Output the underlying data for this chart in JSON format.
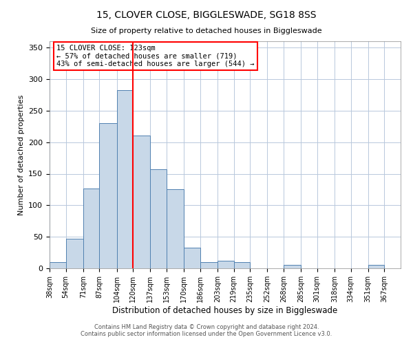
{
  "title": "15, CLOVER CLOSE, BIGGLESWADE, SG18 8SS",
  "subtitle": "Size of property relative to detached houses in Biggleswade",
  "xlabel": "Distribution of detached houses by size in Biggleswade",
  "ylabel": "Number of detached properties",
  "bin_labels": [
    "38sqm",
    "54sqm",
    "71sqm",
    "87sqm",
    "104sqm",
    "120sqm",
    "137sqm",
    "153sqm",
    "170sqm",
    "186sqm",
    "203sqm",
    "219sqm",
    "235sqm",
    "252sqm",
    "268sqm",
    "285sqm",
    "301sqm",
    "318sqm",
    "334sqm",
    "351sqm",
    "367sqm"
  ],
  "bar_values": [
    10,
    47,
    127,
    230,
    283,
    210,
    157,
    126,
    33,
    10,
    12,
    10,
    0,
    0,
    6,
    0,
    0,
    0,
    0,
    6,
    0
  ],
  "bar_color": "#c8d8e8",
  "bar_edge_color": "#5080b0",
  "vline_color": "red",
  "ylim": [
    0,
    360
  ],
  "yticks": [
    0,
    50,
    100,
    150,
    200,
    250,
    300,
    350
  ],
  "annotation_title": "15 CLOVER CLOSE: 123sqm",
  "annotation_line1": "← 57% of detached houses are smaller (719)",
  "annotation_line2": "43% of semi-detached houses are larger (544) →",
  "annotation_box_color": "red",
  "footer1": "Contains HM Land Registry data © Crown copyright and database right 2024.",
  "footer2": "Contains public sector information licensed under the Open Government Licence v3.0.",
  "bin_edges": [
    38,
    54,
    71,
    87,
    104,
    120,
    137,
    153,
    170,
    186,
    203,
    219,
    235,
    252,
    268,
    285,
    301,
    318,
    334,
    351,
    367,
    383
  ]
}
